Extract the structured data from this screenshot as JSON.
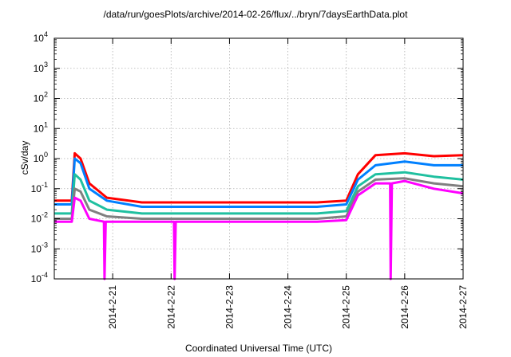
{
  "chart_data": {
    "type": "line",
    "title": "/data/run/goesPlots/archive/2014-02-26/flux/../bryn/7daysEarthData.plot",
    "xlabel": "Coordinated Universal Time (UTC)",
    "ylabel": "cSv/day",
    "y_scale": "log",
    "ylim": [
      0.0001,
      10000
    ],
    "y_ticks": [
      {
        "value": 0.0001,
        "base": "10",
        "exp": "-4"
      },
      {
        "value": 0.001,
        "base": "10",
        "exp": "-3"
      },
      {
        "value": 0.01,
        "base": "10",
        "exp": "-2"
      },
      {
        "value": 0.1,
        "base": "10",
        "exp": "-1"
      },
      {
        "value": 1,
        "base": "10",
        "exp": "0"
      },
      {
        "value": 10,
        "base": "10",
        "exp": "1"
      },
      {
        "value": 100,
        "base": "10",
        "exp": "2"
      },
      {
        "value": 1000,
        "base": "10",
        "exp": "3"
      },
      {
        "value": 10000,
        "base": "10",
        "exp": "4"
      }
    ],
    "xlim": [
      "2014-02-20",
      "2014-02-27"
    ],
    "x_ticks": [
      "2014-2-21",
      "2014-2-22",
      "2014-2-23",
      "2014-2-24",
      "2014-2-25",
      "2014-2-26",
      "2014-2-27"
    ],
    "grid": true,
    "x_data_unit": "days after 2014-02-20 00:00 UTC",
    "series": [
      {
        "color": "#ff0000",
        "x": [
          0,
          0.3,
          0.35,
          0.45,
          0.6,
          0.9,
          1.5,
          2.5,
          3.5,
          4.5,
          5.0,
          5.2,
          5.5,
          6.0,
          6.5,
          7.0
        ],
        "y": [
          0.04,
          0.04,
          1.5,
          1.0,
          0.15,
          0.05,
          0.035,
          0.035,
          0.035,
          0.035,
          0.04,
          0.3,
          1.3,
          1.5,
          1.2,
          1.3
        ]
      },
      {
        "color": "#0080ff",
        "x": [
          0,
          0.3,
          0.35,
          0.45,
          0.6,
          0.9,
          1.5,
          2.5,
          3.5,
          4.5,
          5.0,
          5.2,
          5.5,
          6.0,
          6.5,
          7.0
        ],
        "y": [
          0.03,
          0.03,
          1.0,
          0.7,
          0.1,
          0.04,
          0.025,
          0.025,
          0.025,
          0.025,
          0.03,
          0.2,
          0.6,
          0.8,
          0.6,
          0.6
        ]
      },
      {
        "color": "#20c0a0",
        "x": [
          0,
          0.3,
          0.35,
          0.45,
          0.6,
          0.9,
          1.5,
          2.5,
          3.5,
          4.5,
          5.0,
          5.2,
          5.5,
          6.0,
          6.5,
          7.0
        ],
        "y": [
          0.015,
          0.015,
          0.3,
          0.2,
          0.04,
          0.02,
          0.015,
          0.015,
          0.015,
          0.015,
          0.018,
          0.12,
          0.3,
          0.35,
          0.25,
          0.2
        ]
      },
      {
        "color": "#808080",
        "x": [
          0,
          0.3,
          0.35,
          0.45,
          0.6,
          0.9,
          1.5,
          2.5,
          3.5,
          4.5,
          5.0,
          5.2,
          5.5,
          6.0,
          6.5,
          7.0
        ],
        "y": [
          0.01,
          0.01,
          0.1,
          0.08,
          0.02,
          0.012,
          0.01,
          0.01,
          0.01,
          0.01,
          0.012,
          0.08,
          0.2,
          0.22,
          0.15,
          0.12
        ]
      },
      {
        "color": "#ff00ff",
        "x": [
          0,
          0.3,
          0.35,
          0.45,
          0.6,
          0.85,
          0.86,
          0.88,
          1.5,
          2.05,
          2.06,
          2.08,
          2.5,
          3.5,
          4.5,
          5.0,
          5.2,
          5.5,
          5.75,
          5.76,
          5.78,
          6.0,
          6.5,
          7.0
        ],
        "y": [
          0.008,
          0.008,
          0.05,
          0.04,
          0.01,
          0.008,
          0.0001,
          0.008,
          0.008,
          0.008,
          0.0001,
          0.008,
          0.008,
          0.008,
          0.008,
          0.009,
          0.06,
          0.15,
          0.15,
          0.0001,
          0.15,
          0.18,
          0.1,
          0.07
        ]
      }
    ]
  }
}
